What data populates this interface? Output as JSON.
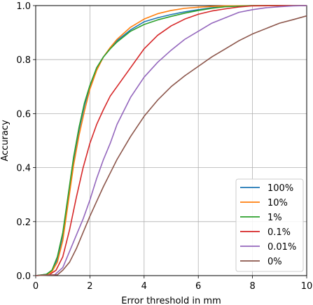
{
  "chart_data": {
    "type": "line",
    "title": "",
    "xlabel": "Error threshold in mm",
    "ylabel": "Accuracy",
    "xlim": [
      0,
      10
    ],
    "ylim": [
      0,
      1
    ],
    "xticks": [
      0,
      2,
      4,
      6,
      8,
      10
    ],
    "yticks": [
      0.0,
      0.2,
      0.4,
      0.6,
      0.8,
      1.0
    ],
    "xtick_labels": [
      "0",
      "2",
      "4",
      "6",
      "8",
      "10"
    ],
    "ytick_labels": [
      "0.0",
      "0.2",
      "0.4",
      "0.6",
      "0.8",
      "1.0"
    ],
    "grid": true,
    "legend_position": "lower-right",
    "series": [
      {
        "name": "100%",
        "color": "#1f77b4",
        "x": [
          0,
          0.4,
          0.6,
          0.8,
          1.0,
          1.2,
          1.4,
          1.6,
          1.8,
          2.0,
          2.25,
          2.5,
          2.75,
          3.0,
          3.5,
          4.0,
          4.5,
          5.0,
          5.5,
          6.0,
          6.5,
          7.0,
          8.0,
          9.0,
          10.0
        ],
        "y": [
          0,
          0.005,
          0.02,
          0.06,
          0.15,
          0.29,
          0.43,
          0.54,
          0.63,
          0.7,
          0.77,
          0.81,
          0.84,
          0.87,
          0.91,
          0.94,
          0.955,
          0.967,
          0.977,
          0.985,
          0.992,
          0.997,
          1.0,
          1.0,
          1.0
        ]
      },
      {
        "name": "10%",
        "color": "#ff7f0e",
        "x": [
          0,
          0.4,
          0.6,
          0.8,
          1.0,
          1.2,
          1.4,
          1.6,
          1.8,
          2.0,
          2.25,
          2.5,
          2.75,
          3.0,
          3.5,
          4.0,
          4.5,
          5.0,
          5.5,
          6.0,
          6.5,
          7.0,
          8.0,
          9.0,
          10.0
        ],
        "y": [
          0,
          0.003,
          0.015,
          0.05,
          0.13,
          0.27,
          0.41,
          0.52,
          0.61,
          0.69,
          0.76,
          0.81,
          0.845,
          0.875,
          0.92,
          0.95,
          0.97,
          0.982,
          0.99,
          0.994,
          0.997,
          0.999,
          1.0,
          1.0,
          1.0
        ]
      },
      {
        "name": "1%",
        "color": "#2ca02c",
        "x": [
          0,
          0.4,
          0.6,
          0.8,
          1.0,
          1.2,
          1.4,
          1.6,
          1.8,
          2.0,
          2.25,
          2.5,
          2.75,
          3.0,
          3.5,
          4.0,
          4.5,
          5.0,
          5.5,
          6.0,
          6.5,
          7.0,
          8.0,
          9.0,
          10.0
        ],
        "y": [
          0,
          0.005,
          0.02,
          0.07,
          0.16,
          0.3,
          0.44,
          0.55,
          0.64,
          0.705,
          0.77,
          0.81,
          0.84,
          0.865,
          0.905,
          0.93,
          0.947,
          0.96,
          0.972,
          0.982,
          0.99,
          0.996,
          1.0,
          1.0,
          1.0
        ]
      },
      {
        "name": "0.1%",
        "color": "#d62728",
        "x": [
          0,
          0.5,
          0.75,
          1.0,
          1.25,
          1.5,
          1.75,
          2.0,
          2.25,
          2.5,
          2.75,
          3.0,
          3.5,
          4.0,
          4.5,
          5.0,
          5.5,
          6.0,
          6.5,
          7.0,
          7.5,
          8.0,
          9.0,
          10.0
        ],
        "y": [
          0,
          0.003,
          0.02,
          0.07,
          0.17,
          0.29,
          0.4,
          0.49,
          0.56,
          0.615,
          0.665,
          0.7,
          0.77,
          0.84,
          0.89,
          0.925,
          0.95,
          0.968,
          0.98,
          0.988,
          0.995,
          0.999,
          1.0,
          1.0
        ]
      },
      {
        "name": "0.01%",
        "color": "#9467bd",
        "x": [
          0,
          0.7,
          1.0,
          1.25,
          1.5,
          1.75,
          2.0,
          2.25,
          2.5,
          2.75,
          3.0,
          3.5,
          4.0,
          4.5,
          5.0,
          5.5,
          6.0,
          6.5,
          7.0,
          7.5,
          8.0,
          8.5,
          9.0,
          9.5,
          10.0
        ],
        "y": [
          0,
          0.003,
          0.03,
          0.09,
          0.15,
          0.21,
          0.28,
          0.36,
          0.43,
          0.49,
          0.56,
          0.66,
          0.735,
          0.79,
          0.835,
          0.875,
          0.905,
          0.935,
          0.955,
          0.975,
          0.985,
          0.992,
          0.996,
          0.999,
          1.0
        ]
      },
      {
        "name": "0%",
        "color": "#8c564b",
        "x": [
          0,
          0.8,
          1.0,
          1.25,
          1.5,
          1.75,
          2.0,
          2.25,
          2.5,
          2.75,
          3.0,
          3.5,
          4.0,
          4.5,
          5.0,
          5.5,
          6.0,
          6.5,
          7.0,
          7.5,
          8.0,
          8.5,
          9.0,
          9.5,
          10.0
        ],
        "y": [
          0,
          0.003,
          0.02,
          0.05,
          0.1,
          0.16,
          0.22,
          0.275,
          0.33,
          0.38,
          0.43,
          0.515,
          0.59,
          0.65,
          0.7,
          0.74,
          0.775,
          0.81,
          0.84,
          0.87,
          0.895,
          0.915,
          0.935,
          0.948,
          0.962
        ]
      }
    ]
  }
}
